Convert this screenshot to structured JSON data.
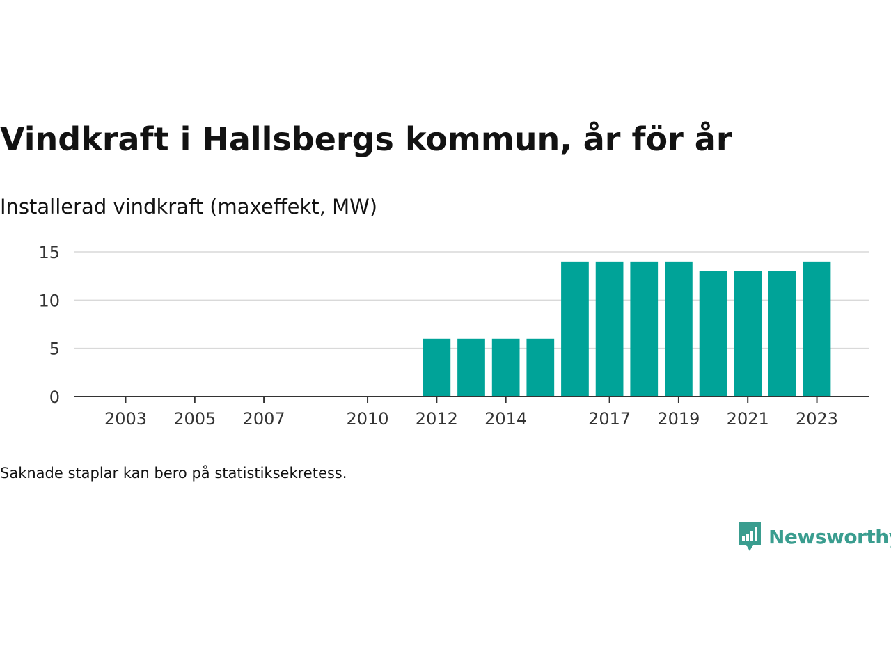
{
  "header": {
    "title": "Vindkraft i Hallsbergs kommun, år för år",
    "subtitle": "Installerad vindkraft (maxeffekt, MW)"
  },
  "footer": {
    "note": "Saknade staplar kan bero på statistiksekretess.",
    "brand_name": "Newsworthy",
    "brand_icon": "bar-chart-speech-bubble-icon"
  },
  "colors": {
    "bar": "#00a398",
    "grid": "#d9d9d9",
    "axis": "#333333",
    "brand": "#3a9d8f"
  },
  "chart_data": {
    "type": "bar",
    "title": "Vindkraft i Hallsbergs kommun, år för år",
    "subtitle": "Installerad vindkraft (maxeffekt, MW)",
    "categories": [
      "2012",
      "2013",
      "2014",
      "2015",
      "2016",
      "2017",
      "2018",
      "2019",
      "2020",
      "2021",
      "2022",
      "2023"
    ],
    "values": [
      6,
      6,
      6,
      6,
      14,
      14,
      14,
      14,
      13,
      13,
      13,
      14
    ],
    "x_range": [
      2001.5,
      2024.5
    ],
    "x_ticks": [
      "2003",
      "2005",
      "2007",
      "2010",
      "2012",
      "2014",
      "2017",
      "2019",
      "2021",
      "2023"
    ],
    "ylim": [
      0,
      15
    ],
    "y_ticks": [
      "0",
      "5",
      "10",
      "15"
    ],
    "grid": true,
    "legend": "none"
  }
}
